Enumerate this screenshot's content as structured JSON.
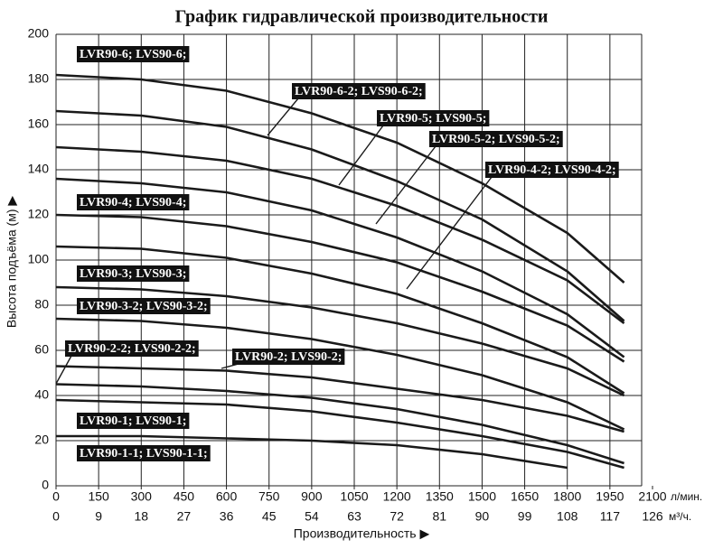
{
  "chart_data": {
    "type": "line",
    "title": "График гидравлической производительности",
    "y_label": "Высота подъёма (м) ▶",
    "x_label": "Производительность ▶",
    "x_unit": "л/мин.",
    "x2_unit": "м³/ч.",
    "x": [
      0,
      300,
      600,
      900,
      1200,
      1500,
      1800,
      2000
    ],
    "xlim": [
      0,
      2100
    ],
    "xticks": [
      0,
      150,
      300,
      450,
      600,
      750,
      900,
      1050,
      1200,
      1350,
      1500,
      1650,
      1800,
      1950,
      2100
    ],
    "x2lim": [
      0,
      126
    ],
    "x2ticks": [
      0,
      9,
      18,
      27,
      36,
      45,
      54,
      63,
      72,
      81,
      90,
      99,
      108,
      117,
      126
    ],
    "ylim": [
      0,
      200
    ],
    "yticks": [
      0,
      20,
      40,
      60,
      80,
      100,
      120,
      140,
      160,
      180,
      200
    ],
    "grid": true,
    "color": "#1a1a1a",
    "series": [
      {
        "name": "LVR90-6; LVS90-6;",
        "values": [
          182,
          180,
          175,
          165,
          152,
          134,
          112,
          90
        ]
      },
      {
        "name": "LVR90-6-2; LVS90-6-2;",
        "values": [
          166,
          164,
          159,
          149,
          135,
          118,
          95,
          73
        ]
      },
      {
        "name": "LVR90-5; LVS90-5;",
        "values": [
          150,
          148,
          144,
          136,
          124,
          109,
          91,
          72
        ]
      },
      {
        "name": "LVR90-5-2; LVS90-5-2;",
        "values": [
          136,
          134,
          130,
          122,
          110,
          95,
          76,
          57
        ]
      },
      {
        "name": "LVR90-4-2; LVS90-4-2;",
        "values": [
          106,
          105,
          101,
          94,
          85,
          72,
          57,
          41
        ]
      },
      {
        "name": "LVR90-4; LVS90-4;",
        "values": [
          120,
          119,
          115,
          108,
          99,
          86,
          71,
          55
        ]
      },
      {
        "name": "LVR90-3; LVS90-3;",
        "values": [
          88,
          87,
          84,
          79,
          72,
          63,
          52,
          40
        ]
      },
      {
        "name": "LVR90-3-2; LVS90-3-2;",
        "values": [
          74,
          73,
          70,
          65,
          58,
          49,
          37,
          25
        ]
      },
      {
        "name": "LVR90-2-2; LVS90-2-2;",
        "values": [
          45,
          44,
          42,
          39,
          34,
          27,
          18,
          10
        ]
      },
      {
        "name": "LVR90-2; LVS90-2;",
        "values": [
          53,
          52,
          51,
          48,
          43,
          38,
          31,
          24
        ]
      },
      {
        "name": "LVR90-1; LVS90-1;",
        "values": [
          38,
          37,
          36,
          33,
          28,
          22,
          15,
          8
        ]
      },
      {
        "name": "LVR90-1-1; LVS90-1-1;",
        "values": [
          22,
          22,
          21,
          20,
          18,
          14,
          8,
          null
        ]
      }
    ]
  }
}
